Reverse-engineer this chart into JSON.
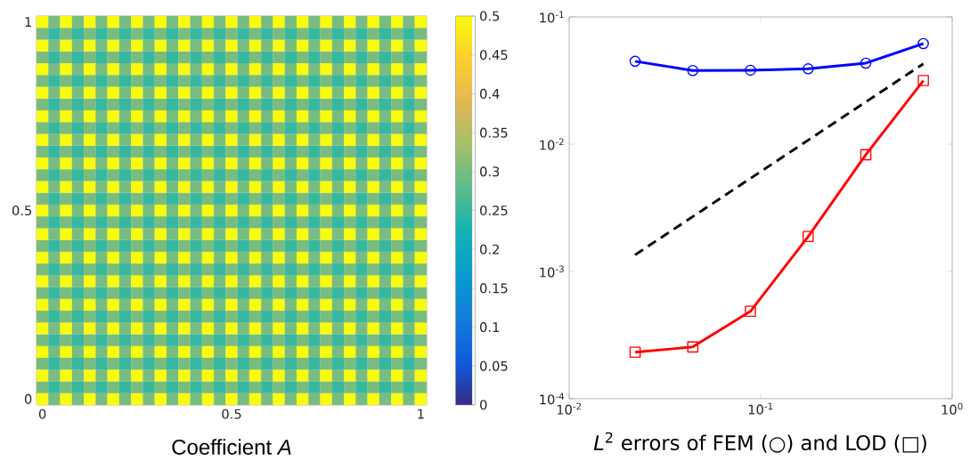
{
  "chart_data": [
    {
      "type": "heatmap",
      "xlabel": "Coefficient *A*",
      "categories": [
        "0",
        null,
        null,
        null,
        null,
        null,
        null,
        null,
        null,
        null,
        null,
        null,
        null,
        null,
        null,
        null,
        "0.5",
        null,
        null,
        null,
        null,
        null,
        null,
        null,
        null,
        null,
        null,
        null,
        null,
        null,
        null,
        null,
        "1"
      ],
      "y_categories": [
        "1",
        null,
        null,
        null,
        null,
        null,
        null,
        null,
        null,
        null,
        null,
        null,
        null,
        null,
        null,
        null,
        "0.5",
        null,
        null,
        null,
        null,
        null,
        null,
        null,
        null,
        null,
        null,
        null,
        null,
        null,
        null,
        null,
        "0"
      ],
      "clim": [
        0,
        0.5
      ],
      "cticks": [
        0,
        0.05,
        0.1,
        0.15,
        0.2,
        0.25,
        0.3,
        0.35,
        0.4,
        0.45,
        0.5
      ],
      "cells": [
        [
          0.5,
          0.3,
          0.5,
          0.3,
          0.5,
          0.3,
          0.5,
          0.3,
          0.5,
          0.3,
          0.5,
          0.3,
          0.5,
          0.3,
          0.5,
          0.3,
          0.5,
          0.3,
          0.5,
          0.3,
          0.5,
          0.3,
          0.5,
          0.3,
          0.5,
          0.3,
          0.5,
          0.3,
          0.5,
          0.3,
          0.5,
          0.3,
          0.5
        ],
        [
          0.3,
          0.25,
          0.3,
          0.25,
          0.3,
          0.25,
          0.3,
          0.25,
          0.3,
          0.25,
          0.3,
          0.25,
          0.3,
          0.25,
          0.3,
          0.25,
          0.3,
          0.25,
          0.3,
          0.25,
          0.3,
          0.25,
          0.3,
          0.25,
          0.3,
          0.25,
          0.3,
          0.25,
          0.3,
          0.25,
          0.3,
          0.25,
          0.3
        ],
        [
          0.5,
          0.3,
          0.5,
          0.3,
          0.5,
          0.3,
          0.5,
          0.3,
          0.5,
          0.3,
          0.5,
          0.3,
          0.5,
          0.3,
          0.5,
          0.3,
          0.5,
          0.3,
          0.5,
          0.3,
          0.5,
          0.3,
          0.5,
          0.3,
          0.5,
          0.3,
          0.5,
          0.3,
          0.5,
          0.3,
          0.5,
          0.3,
          0.5
        ],
        [
          0.3,
          0.25,
          0.3,
          0.25,
          0.3,
          0.25,
          0.3,
          0.25,
          0.3,
          0.25,
          0.3,
          0.25,
          0.3,
          0.25,
          0.3,
          0.25,
          0.3,
          0.25,
          0.3,
          0.25,
          0.3,
          0.25,
          0.3,
          0.25,
          0.3,
          0.25,
          0.3,
          0.25,
          0.3,
          0.25,
          0.3,
          0.25,
          0.3
        ],
        [
          0.5,
          0.3,
          0.5,
          0.3,
          0.5,
          0.3,
          0.5,
          0.3,
          0.5,
          0.3,
          0.5,
          0.3,
          0.5,
          0.3,
          0.5,
          0.3,
          0.5,
          0.3,
          0.5,
          0.3,
          0.5,
          0.3,
          0.5,
          0.3,
          0.5,
          0.3,
          0.5,
          0.3,
          0.5,
          0.3,
          0.5,
          0.3,
          0.5
        ],
        [
          0.3,
          0.25,
          0.3,
          0.25,
          0.3,
          0.25,
          0.3,
          0.25,
          0.3,
          0.25,
          0.3,
          0.25,
          0.3,
          0.25,
          0.3,
          0.25,
          0.3,
          0.25,
          0.3,
          0.25,
          0.3,
          0.25,
          0.3,
          0.25,
          0.3,
          0.25,
          0.3,
          0.25,
          0.3,
          0.25,
          0.3,
          0.25,
          0.3
        ],
        [
          0.5,
          0.3,
          0.5,
          0.3,
          0.5,
          0.3,
          0.5,
          0.3,
          0.5,
          0.3,
          0.5,
          0.3,
          0.5,
          0.3,
          0.5,
          0.3,
          0.5,
          0.3,
          0.5,
          0.3,
          0.5,
          0.3,
          0.5,
          0.3,
          0.5,
          0.3,
          0.5,
          0.3,
          0.5,
          0.3,
          0.5,
          0.3,
          0.5
        ],
        [
          0.3,
          0.25,
          0.3,
          0.25,
          0.3,
          0.25,
          0.3,
          0.25,
          0.3,
          0.25,
          0.3,
          0.25,
          0.3,
          0.25,
          0.3,
          0.25,
          0.3,
          0.25,
          0.3,
          0.25,
          0.3,
          0.25,
          0.3,
          0.25,
          0.3,
          0.25,
          0.3,
          0.25,
          0.3,
          0.25,
          0.3,
          0.25,
          0.3
        ],
        [
          0.5,
          0.3,
          0.5,
          0.3,
          0.5,
          0.3,
          0.5,
          0.3,
          0.5,
          0.3,
          0.5,
          0.3,
          0.5,
          0.3,
          0.5,
          0.3,
          0.5,
          0.3,
          0.5,
          0.3,
          0.5,
          0.3,
          0.5,
          0.3,
          0.5,
          0.3,
          0.5,
          0.3,
          0.5,
          0.3,
          0.5,
          0.3,
          0.5
        ],
        [
          0.3,
          0.25,
          0.3,
          0.25,
          0.3,
          0.25,
          0.3,
          0.25,
          0.3,
          0.25,
          0.3,
          0.25,
          0.3,
          0.25,
          0.3,
          0.25,
          0.3,
          0.25,
          0.3,
          0.25,
          0.3,
          0.25,
          0.3,
          0.25,
          0.3,
          0.25,
          0.3,
          0.25,
          0.3,
          0.25,
          0.3,
          0.25,
          0.3
        ],
        [
          0.5,
          0.3,
          0.5,
          0.3,
          0.5,
          0.3,
          0.5,
          0.3,
          0.5,
          0.3,
          0.5,
          0.3,
          0.5,
          0.3,
          0.5,
          0.3,
          0.5,
          0.3,
          0.5,
          0.3,
          0.5,
          0.3,
          0.5,
          0.3,
          0.5,
          0.3,
          0.5,
          0.3,
          0.5,
          0.3,
          0.5,
          0.3,
          0.5
        ],
        [
          0.3,
          0.25,
          0.3,
          0.25,
          0.3,
          0.25,
          0.3,
          0.25,
          0.3,
          0.25,
          0.3,
          0.25,
          0.3,
          0.25,
          0.3,
          0.25,
          0.3,
          0.25,
          0.3,
          0.25,
          0.3,
          0.25,
          0.3,
          0.25,
          0.3,
          0.25,
          0.3,
          0.25,
          0.3,
          0.25,
          0.3,
          0.25,
          0.3
        ],
        [
          0.5,
          0.3,
          0.5,
          0.3,
          0.5,
          0.3,
          0.5,
          0.3,
          0.5,
          0.3,
          0.5,
          0.3,
          0.5,
          0.3,
          0.5,
          0.3,
          0.5,
          0.3,
          0.5,
          0.3,
          0.5,
          0.3,
          0.5,
          0.3,
          0.5,
          0.3,
          0.5,
          0.3,
          0.5,
          0.3,
          0.5,
          0.3,
          0.5
        ],
        [
          0.3,
          0.25,
          0.3,
          0.25,
          0.3,
          0.25,
          0.3,
          0.25,
          0.3,
          0.25,
          0.3,
          0.25,
          0.3,
          0.25,
          0.3,
          0.25,
          0.3,
          0.25,
          0.3,
          0.25,
          0.3,
          0.25,
          0.3,
          0.25,
          0.3,
          0.25,
          0.3,
          0.25,
          0.3,
          0.25,
          0.3,
          0.25,
          0.3
        ],
        [
          0.5,
          0.3,
          0.5,
          0.3,
          0.5,
          0.3,
          0.5,
          0.3,
          0.5,
          0.3,
          0.5,
          0.3,
          0.5,
          0.3,
          0.5,
          0.3,
          0.5,
          0.3,
          0.5,
          0.3,
          0.5,
          0.3,
          0.5,
          0.3,
          0.5,
          0.3,
          0.5,
          0.3,
          0.5,
          0.3,
          0.5,
          0.3,
          0.5
        ],
        [
          0.3,
          0.25,
          0.3,
          0.25,
          0.3,
          0.25,
          0.3,
          0.25,
          0.3,
          0.25,
          0.3,
          0.25,
          0.3,
          0.25,
          0.3,
          0.25,
          0.3,
          0.25,
          0.3,
          0.25,
          0.3,
          0.25,
          0.3,
          0.25,
          0.3,
          0.25,
          0.3,
          0.25,
          0.3,
          0.25,
          0.3,
          0.25,
          0.3
        ],
        [
          0.5,
          0.3,
          0.5,
          0.3,
          0.5,
          0.3,
          0.5,
          0.3,
          0.5,
          0.3,
          0.5,
          0.3,
          0.5,
          0.3,
          0.5,
          0.3,
          0.5,
          0.3,
          0.5,
          0.3,
          0.5,
          0.3,
          0.5,
          0.3,
          0.5,
          0.3,
          0.5,
          0.3,
          0.5,
          0.3,
          0.5,
          0.3,
          0.5
        ],
        [
          0.3,
          0.25,
          0.3,
          0.25,
          0.3,
          0.25,
          0.3,
          0.25,
          0.3,
          0.25,
          0.3,
          0.25,
          0.3,
          0.25,
          0.3,
          0.25,
          0.3,
          0.25,
          0.3,
          0.25,
          0.3,
          0.25,
          0.3,
          0.25,
          0.3,
          0.25,
          0.3,
          0.25,
          0.3,
          0.25,
          0.3,
          0.25,
          0.3
        ],
        [
          0.5,
          0.3,
          0.5,
          0.3,
          0.5,
          0.3,
          0.5,
          0.3,
          0.5,
          0.3,
          0.5,
          0.3,
          0.5,
          0.3,
          0.5,
          0.3,
          0.5,
          0.3,
          0.5,
          0.3,
          0.5,
          0.3,
          0.5,
          0.3,
          0.5,
          0.3,
          0.5,
          0.3,
          0.5,
          0.3,
          0.5,
          0.3,
          0.5
        ],
        [
          0.3,
          0.25,
          0.3,
          0.25,
          0.3,
          0.25,
          0.3,
          0.25,
          0.3,
          0.25,
          0.3,
          0.25,
          0.3,
          0.25,
          0.3,
          0.25,
          0.3,
          0.25,
          0.3,
          0.25,
          0.3,
          0.25,
          0.3,
          0.25,
          0.3,
          0.25,
          0.3,
          0.25,
          0.3,
          0.25,
          0.3,
          0.25,
          0.3
        ],
        [
          0.5,
          0.3,
          0.5,
          0.3,
          0.5,
          0.3,
          0.5,
          0.3,
          0.5,
          0.3,
          0.5,
          0.3,
          0.5,
          0.3,
          0.5,
          0.3,
          0.5,
          0.3,
          0.5,
          0.3,
          0.5,
          0.3,
          0.5,
          0.3,
          0.5,
          0.3,
          0.5,
          0.3,
          0.5,
          0.3,
          0.5,
          0.3,
          0.5
        ],
        [
          0.3,
          0.25,
          0.3,
          0.25,
          0.3,
          0.25,
          0.3,
          0.25,
          0.3,
          0.25,
          0.3,
          0.25,
          0.3,
          0.25,
          0.3,
          0.25,
          0.3,
          0.25,
          0.3,
          0.25,
          0.3,
          0.25,
          0.3,
          0.25,
          0.3,
          0.25,
          0.3,
          0.25,
          0.3,
          0.25,
          0.3,
          0.25,
          0.3
        ],
        [
          0.5,
          0.3,
          0.5,
          0.3,
          0.5,
          0.3,
          0.5,
          0.3,
          0.5,
          0.3,
          0.5,
          0.3,
          0.5,
          0.3,
          0.5,
          0.3,
          0.5,
          0.3,
          0.5,
          0.3,
          0.5,
          0.3,
          0.5,
          0.3,
          0.5,
          0.3,
          0.5,
          0.3,
          0.5,
          0.3,
          0.5,
          0.3,
          0.5
        ],
        [
          0.3,
          0.25,
          0.3,
          0.25,
          0.3,
          0.25,
          0.3,
          0.25,
          0.3,
          0.25,
          0.3,
          0.25,
          0.3,
          0.25,
          0.3,
          0.25,
          0.3,
          0.25,
          0.3,
          0.25,
          0.3,
          0.25,
          0.3,
          0.25,
          0.3,
          0.25,
          0.3,
          0.25,
          0.3,
          0.25,
          0.3,
          0.25,
          0.3
        ],
        [
          0.5,
          0.3,
          0.5,
          0.3,
          0.5,
          0.3,
          0.5,
          0.3,
          0.5,
          0.3,
          0.5,
          0.3,
          0.5,
          0.3,
          0.5,
          0.3,
          0.5,
          0.3,
          0.5,
          0.3,
          0.5,
          0.3,
          0.5,
          0.3,
          0.5,
          0.3,
          0.5,
          0.3,
          0.5,
          0.3,
          0.5,
          0.3,
          0.5
        ],
        [
          0.3,
          0.25,
          0.3,
          0.25,
          0.3,
          0.25,
          0.3,
          0.25,
          0.3,
          0.25,
          0.3,
          0.25,
          0.3,
          0.25,
          0.3,
          0.25,
          0.3,
          0.25,
          0.3,
          0.25,
          0.3,
          0.25,
          0.3,
          0.25,
          0.3,
          0.25,
          0.3,
          0.25,
          0.3,
          0.25,
          0.3,
          0.25,
          0.3
        ],
        [
          0.5,
          0.3,
          0.5,
          0.3,
          0.5,
          0.3,
          0.5,
          0.3,
          0.5,
          0.3,
          0.5,
          0.3,
          0.5,
          0.3,
          0.5,
          0.3,
          0.5,
          0.3,
          0.5,
          0.3,
          0.5,
          0.3,
          0.5,
          0.3,
          0.5,
          0.3,
          0.5,
          0.3,
          0.5,
          0.3,
          0.5,
          0.3,
          0.5
        ],
        [
          0.3,
          0.25,
          0.3,
          0.25,
          0.3,
          0.25,
          0.3,
          0.25,
          0.3,
          0.25,
          0.3,
          0.25,
          0.3,
          0.25,
          0.3,
          0.25,
          0.3,
          0.25,
          0.3,
          0.25,
          0.3,
          0.25,
          0.3,
          0.25,
          0.3,
          0.25,
          0.3,
          0.25,
          0.3,
          0.25,
          0.3,
          0.25,
          0.3
        ],
        [
          0.5,
          0.3,
          0.5,
          0.3,
          0.5,
          0.3,
          0.5,
          0.3,
          0.5,
          0.3,
          0.5,
          0.3,
          0.5,
          0.3,
          0.5,
          0.3,
          0.5,
          0.3,
          0.5,
          0.3,
          0.5,
          0.3,
          0.5,
          0.3,
          0.5,
          0.3,
          0.5,
          0.3,
          0.5,
          0.3,
          0.5,
          0.3,
          0.5
        ],
        [
          0.3,
          0.25,
          0.3,
          0.25,
          0.3,
          0.25,
          0.3,
          0.25,
          0.3,
          0.25,
          0.3,
          0.25,
          0.3,
          0.25,
          0.3,
          0.25,
          0.3,
          0.25,
          0.3,
          0.25,
          0.3,
          0.25,
          0.3,
          0.25,
          0.3,
          0.25,
          0.3,
          0.25,
          0.3,
          0.25,
          0.3,
          0.25,
          0.3
        ],
        [
          0.5,
          0.3,
          0.5,
          0.3,
          0.5,
          0.3,
          0.5,
          0.3,
          0.5,
          0.3,
          0.5,
          0.3,
          0.5,
          0.3,
          0.5,
          0.3,
          0.5,
          0.3,
          0.5,
          0.3,
          0.5,
          0.3,
          0.5,
          0.3,
          0.5,
          0.3,
          0.5,
          0.3,
          0.5,
          0.3,
          0.5,
          0.3,
          0.5
        ],
        [
          0.3,
          0.25,
          0.3,
          0.25,
          0.3,
          0.25,
          0.3,
          0.25,
          0.3,
          0.25,
          0.3,
          0.25,
          0.3,
          0.25,
          0.3,
          0.25,
          0.3,
          0.25,
          0.3,
          0.25,
          0.3,
          0.25,
          0.3,
          0.25,
          0.3,
          0.25,
          0.3,
          0.25,
          0.3,
          0.25,
          0.3,
          0.25,
          0.3
        ],
        [
          0.5,
          0.3,
          0.5,
          0.3,
          0.5,
          0.3,
          0.5,
          0.3,
          0.5,
          0.3,
          0.5,
          0.3,
          0.5,
          0.3,
          0.5,
          0.3,
          0.5,
          0.3,
          0.5,
          0.3,
          0.5,
          0.3,
          0.5,
          0.3,
          0.5,
          0.3,
          0.5,
          0.3,
          0.5,
          0.3,
          0.5,
          0.3,
          0.5
        ]
      ]
    },
    {
      "type": "line",
      "xlabel": "*L*$^{2}$ errors of FEM (○) and LOD (□)",
      "log": "xy",
      "xlim": [
        0.01,
        1
      ],
      "ylim": [
        0.0001,
        0.1
      ],
      "xticks": [
        {
          "value": 0.01,
          "label": "10$^{-2}$"
        },
        {
          "value": 0.1,
          "label": "10$^{-1}$"
        },
        {
          "value": 1,
          "label": "10$^{0}$"
        }
      ],
      "yticks": [
        {
          "value": 0.0001,
          "label": "10$^{-4}$"
        },
        {
          "value": 0.001,
          "label": "10$^{-3}$"
        },
        {
          "value": 0.01,
          "label": "10$^{-2}$"
        },
        {
          "value": 0.1,
          "label": "10$^{-1}$"
        }
      ],
      "series": [
        {
          "color": "#0000ff",
          "marker": "circle",
          "line_style": "solid",
          "x": [
            0.0221,
            0.0442,
            0.0884,
            0.177,
            0.354,
            0.707
          ],
          "values": [
            0.0448,
            0.0379,
            0.0381,
            0.0391,
            0.0433,
            0.0617
          ]
        },
        {
          "color": "#ff0000",
          "marker": "square",
          "line_style": "solid",
          "x": [
            0.0221,
            0.0442,
            0.0884,
            0.177,
            0.354,
            0.707
          ],
          "values": [
            0.000232,
            0.000255,
            0.000486,
            0.00188,
            0.00826,
            0.0316
          ]
        },
        {
          "color": "#000000",
          "marker": "none",
          "line_style": "dashed",
          "x": [
            0.0221,
            0.707
          ],
          "values": [
            0.00135,
            0.0428
          ]
        }
      ]
    }
  ]
}
